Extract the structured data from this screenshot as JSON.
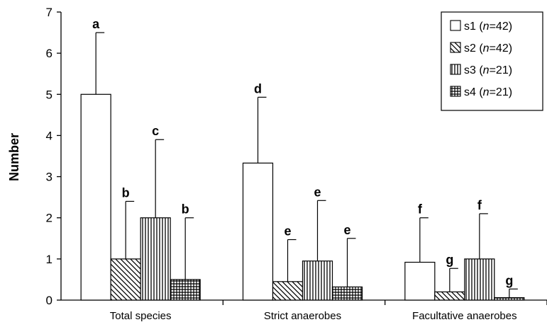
{
  "chart_data": {
    "type": "bar",
    "title": "",
    "xlabel": "",
    "ylabel": "Number",
    "ylim": [
      0,
      7
    ],
    "yticks": [
      "0",
      "1",
      "2",
      "3",
      "4",
      "5",
      "6",
      "7"
    ],
    "grid": false,
    "legend_position": "top-right",
    "categories": [
      "Total species",
      "Strict anaerobes",
      "Facultative anaerobes"
    ],
    "series": [
      {
        "name": "s1",
        "n_label": "n",
        "n_value": "=42",
        "pattern": "open",
        "values": [
          5.0,
          3.33,
          0.92
        ],
        "error_upper": [
          6.5,
          4.93,
          2.0
        ],
        "letters": [
          "a",
          "d",
          "f"
        ]
      },
      {
        "name": "s2",
        "n_label": "n",
        "n_value": "=42",
        "pattern": "diagonal",
        "values": [
          1.0,
          0.45,
          0.2
        ],
        "error_upper": [
          2.4,
          1.47,
          0.77
        ],
        "letters": [
          "b",
          "e",
          "g"
        ]
      },
      {
        "name": "s3",
        "n_label": "n",
        "n_value": "=21",
        "pattern": "vertical",
        "values": [
          2.0,
          0.95,
          1.0
        ],
        "error_upper": [
          3.9,
          2.42,
          2.1
        ],
        "letters": [
          "c",
          "e",
          "f"
        ]
      },
      {
        "name": "s4",
        "n_label": "n",
        "n_value": "=21",
        "pattern": "grid",
        "values": [
          0.5,
          0.32,
          0.06
        ],
        "error_upper": [
          2.0,
          1.5,
          0.27
        ],
        "letters": [
          "b",
          "e",
          "g"
        ]
      }
    ]
  }
}
